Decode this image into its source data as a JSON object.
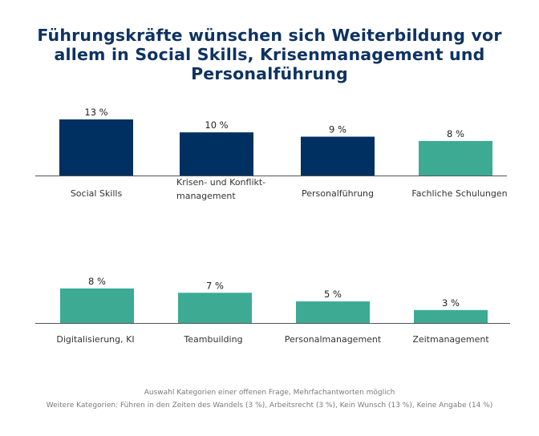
{
  "title": "Führungskräfte wünschen sich Weiterbildung vor allem in Social Skills, Krisenmanagement und Personalführung",
  "chart_data": {
    "type": "bar",
    "title": "Führungskräfte wünschen sich Weiterbildung vor allem in Social Skills, Krisenmanagement und Personalführung",
    "unit": "%",
    "ylim": [
      0,
      13
    ],
    "rows": [
      {
        "categories": [
          "Social Skills",
          "Krisen- und Konflikt-management",
          "Personalführung",
          "Fachliche Schulungen"
        ],
        "category_lines": [
          [
            "Social Skills"
          ],
          [
            "Krisen- und Konflikt-",
            "management"
          ],
          [
            "Personalführung"
          ],
          [
            "Fachliche Schulungen"
          ]
        ],
        "values": [
          13,
          10,
          9,
          8
        ],
        "value_labels": [
          "13 %",
          "10 %",
          "9 %",
          "8 %"
        ],
        "colors": [
          "#002f61",
          "#002f61",
          "#002f61",
          "#3daa94"
        ]
      },
      {
        "categories": [
          "Digitalisierung, KI",
          "Teambuilding",
          "Personalmanagement",
          "Zeitmanagement"
        ],
        "category_lines": [
          [
            "Digitalisierung, KI"
          ],
          [
            "Teambuilding"
          ],
          [
            "Personalmanagement"
          ],
          [
            "Zeitmanagement"
          ]
        ],
        "values": [
          8,
          7,
          5,
          3
        ],
        "value_labels": [
          "8 %",
          "7 %",
          "5 %",
          "3 %"
        ],
        "colors": [
          "#3daa94",
          "#3daa94",
          "#3daa94",
          "#3daa94"
        ]
      }
    ]
  },
  "notes": {
    "line1": "Auswahl Kategorien einer offenen Frage, Mehrfachantworten möglich",
    "line2": "Weitere Kategorien: Führen in den Zeiten des Wandels (3 %), Arbeitsrecht (3 %), Kein Wunsch (13 %), Keine Angabe (14 %)"
  }
}
